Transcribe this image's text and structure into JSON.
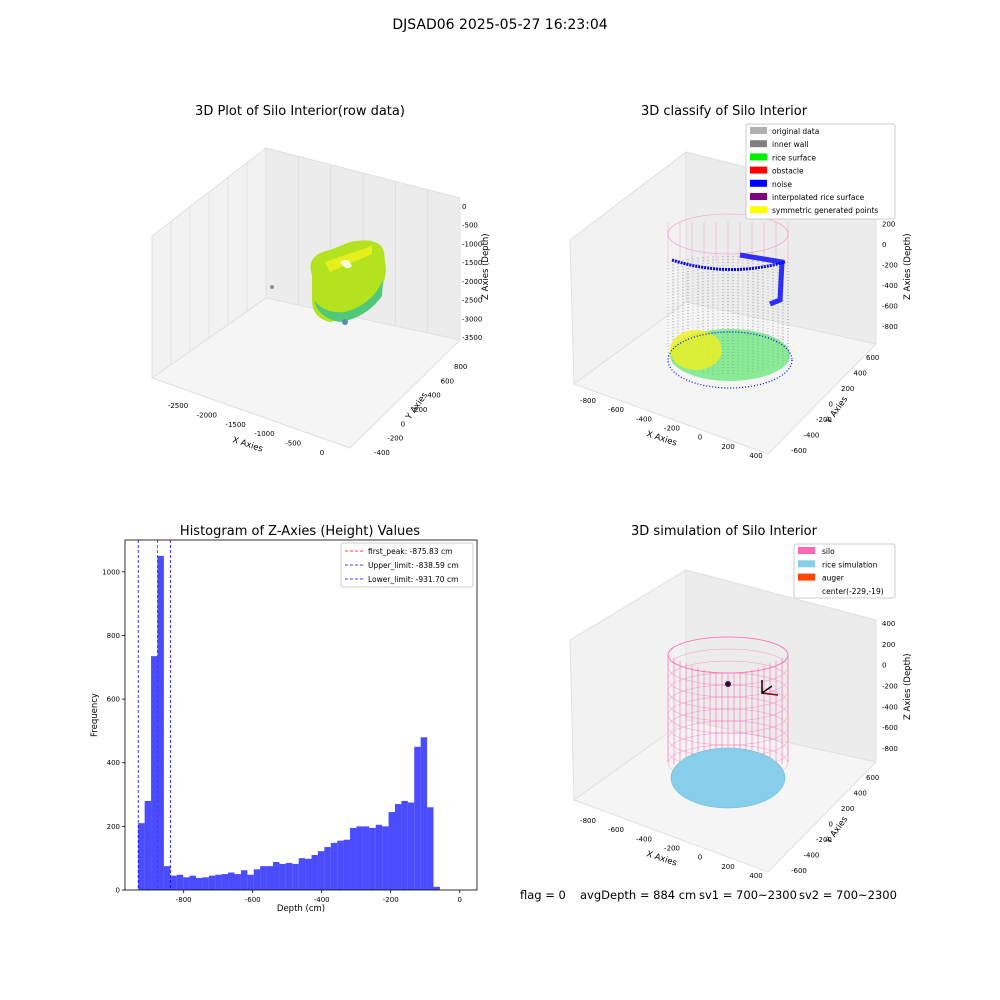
{
  "figure": {
    "suptitle": "DJSAD06 2025-05-27 16:23:04"
  },
  "panels": {
    "raw": {
      "title": "3D Plot of Silo Interior(row data)",
      "xlabel": "X Axies",
      "ylabel": "Y Axies",
      "zlabel": "Z Axies (Depth)",
      "xticks": [
        "-2500",
        "-2000",
        "-1500",
        "-1000",
        "-500",
        "0"
      ],
      "yticks": [
        "-400",
        "-200",
        "0",
        "200",
        "400",
        "600",
        "800"
      ],
      "zticks": [
        "0",
        "-500",
        "-1000",
        "-1500",
        "-2000",
        "-2500",
        "-3000",
        "-3500"
      ]
    },
    "classify": {
      "title": "3D classify of Silo Interior",
      "xlabel": "X Axies",
      "ylabel": "Y Axies",
      "zlabel": "Z Axies (Depth)",
      "xticks": [
        "-800",
        "-600",
        "-400",
        "-200",
        "0",
        "200",
        "400"
      ],
      "yticks": [
        "-600",
        "-400",
        "-200",
        "0",
        "200",
        "400",
        "600"
      ],
      "zticks": [
        "400",
        "200",
        "0",
        "-200",
        "-400",
        "-600",
        "-800"
      ],
      "legend": [
        {
          "label": "original data",
          "color": "#b0b0b0"
        },
        {
          "label": "inner wall",
          "color": "#808080"
        },
        {
          "label": "rice surface",
          "color": "#00ee00"
        },
        {
          "label": "obstacle",
          "color": "#ff0000"
        },
        {
          "label": "noise",
          "color": "#0000ff"
        },
        {
          "label": "interpolated rice surface",
          "color": "#800080"
        },
        {
          "label": "symmetric generated points",
          "color": "#ffff00"
        }
      ]
    },
    "simulation": {
      "title": "3D simulation of Silo Interior",
      "xlabel": "X Axies",
      "ylabel": "Y Axies",
      "zlabel": "Z Axies (Depth)",
      "xticks": [
        "-800",
        "-600",
        "-400",
        "-200",
        "0",
        "200",
        "400"
      ],
      "yticks": [
        "-600",
        "-400",
        "-200",
        "0",
        "200",
        "400",
        "600"
      ],
      "zticks": [
        "400",
        "200",
        "0",
        "-200",
        "-400",
        "-600",
        "-800"
      ],
      "legend": [
        {
          "label": "silo",
          "color": "#ff69b4"
        },
        {
          "label": "rice simulation",
          "color": "#87ceeb"
        },
        {
          "label": "auger",
          "color": "#ff4500"
        },
        {
          "label": "center(-229,-19)",
          "color": ""
        }
      ]
    }
  },
  "chart_data": {
    "type": "bar",
    "title": "Histogram of Z-Axies (Height) Values",
    "xlabel": "Depth (cm)",
    "ylabel": "Frequency",
    "xlim": [
      -970,
      50
    ],
    "ylim": [
      0,
      1100
    ],
    "xticks": [
      -800,
      -600,
      -400,
      -200,
      0
    ],
    "yticks": [
      0,
      200,
      400,
      600,
      800,
      1000
    ],
    "bin_width": 18.6,
    "bin_start": -931.7,
    "bar_color": "#0000ff",
    "values": [
      210,
      280,
      735,
      1050,
      75,
      45,
      48,
      40,
      45,
      38,
      40,
      45,
      48,
      50,
      55,
      50,
      62,
      48,
      65,
      75,
      75,
      88,
      82,
      85,
      82,
      100,
      98,
      110,
      122,
      135,
      148,
      155,
      158,
      195,
      200,
      200,
      195,
      205,
      200,
      245,
      270,
      280,
      275,
      450,
      480,
      260,
      10
    ],
    "lines": [
      {
        "label": "first_peak: -875.83 cm",
        "x": -875.83,
        "color": "#ff0000"
      },
      {
        "label": "Upper_limit: -838.59 cm",
        "x": -838.59,
        "color": "#0000ff"
      },
      {
        "label": "Lower_limit: -931.70 cm",
        "x": -931.7,
        "color": "#0000ff"
      }
    ]
  },
  "status": {
    "flag": "flag = 0",
    "avg_depth": "avgDepth = 884 cm",
    "sv1": "sv1 = 700~2300",
    "sv2": "sv2 = 700~2300"
  }
}
